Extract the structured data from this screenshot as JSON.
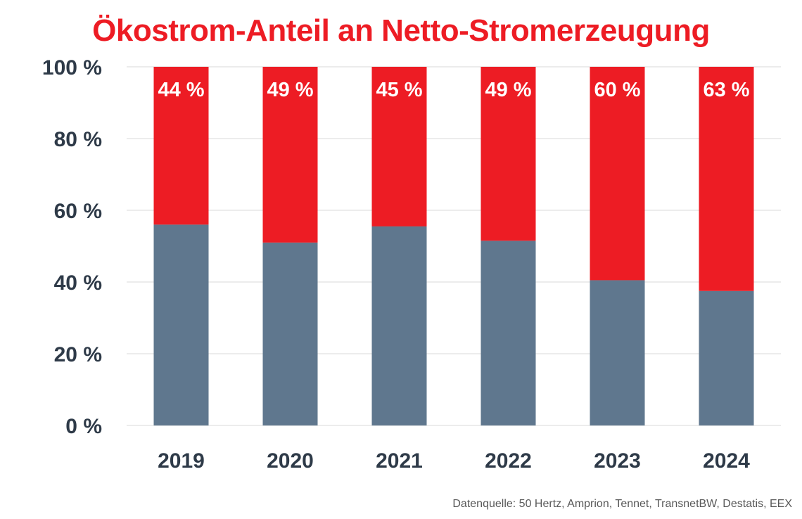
{
  "chart_data": {
    "type": "bar",
    "stacked": true,
    "title": "Ökostrom-Anteil an Netto-Stromerzeugung",
    "categories": [
      "2019",
      "2020",
      "2021",
      "2022",
      "2023",
      "2024"
    ],
    "series": [
      {
        "values": [
          56,
          51,
          55.5,
          51.5,
          40.5,
          37.5
        ],
        "color": "#5f778e"
      },
      {
        "values": [
          44,
          49,
          44.5,
          48.5,
          59.5,
          62.5
        ],
        "color": "#ed1c24",
        "data_labels": [
          "44 %",
          "49 %",
          "45 %",
          "49 %",
          "60 %",
          "63 %"
        ]
      }
    ],
    "ylim": [
      0,
      100
    ],
    "yticks": [
      0,
      20,
      40,
      60,
      80,
      100
    ],
    "ytick_labels": [
      "0 %",
      "20 %",
      "40 %",
      "60 %",
      "80 %",
      "100 %"
    ],
    "grid": true,
    "legend": "none",
    "source": "Datenquelle: 50 Hertz, Amprion, Tennet, TransnetBW, Destatis, EEX"
  }
}
